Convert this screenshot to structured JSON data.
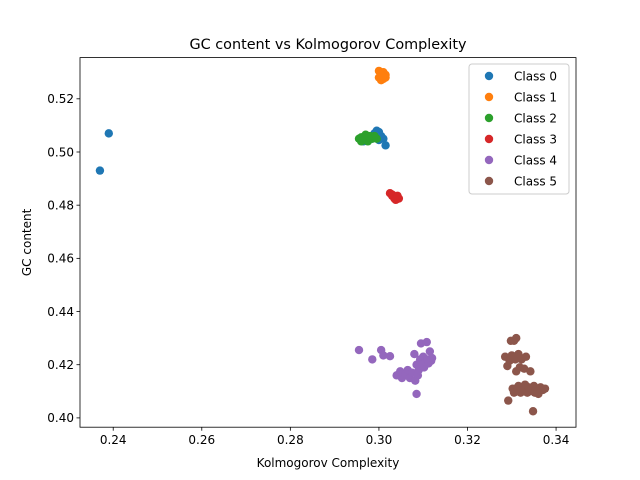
{
  "chart_data": {
    "type": "scatter",
    "title": "GC content vs Kolmogorov Complexity",
    "xlabel": "Kolmogorov Complexity",
    "ylabel": "GC content",
    "xlim": [
      0.2325,
      0.3445
    ],
    "ylim": [
      0.3965,
      0.5355
    ],
    "xticks": [
      "0.24",
      "0.26",
      "0.28",
      "0.30",
      "0.32",
      "0.34"
    ],
    "yticks": [
      "0.40",
      "0.42",
      "0.44",
      "0.46",
      "0.48",
      "0.50",
      "0.52"
    ],
    "grid": false,
    "legend_position": "top-right",
    "series": [
      {
        "name": "Class 0",
        "color": "#1f77b4",
        "points": [
          [
            0.237,
            0.493
          ],
          [
            0.239,
            0.507
          ],
          [
            0.2965,
            0.504
          ],
          [
            0.2975,
            0.506
          ],
          [
            0.2985,
            0.505
          ],
          [
            0.299,
            0.507
          ],
          [
            0.2995,
            0.508
          ],
          [
            0.3,
            0.5075
          ],
          [
            0.3005,
            0.506
          ],
          [
            0.3,
            0.5045
          ],
          [
            0.301,
            0.505
          ],
          [
            0.3015,
            0.5025
          ]
        ]
      },
      {
        "name": "Class 1",
        "color": "#ff7f0e",
        "points": [
          [
            0.3,
            0.5305
          ],
          [
            0.3005,
            0.5295
          ],
          [
            0.301,
            0.53
          ],
          [
            0.3015,
            0.529
          ],
          [
            0.3,
            0.528
          ],
          [
            0.301,
            0.5275
          ],
          [
            0.3005,
            0.527
          ],
          [
            0.3015,
            0.528
          ],
          [
            0.3008,
            0.5285
          ]
        ]
      },
      {
        "name": "Class 2",
        "color": "#2ca02c",
        "points": [
          [
            0.2955,
            0.505
          ],
          [
            0.296,
            0.5055
          ],
          [
            0.2965,
            0.5045
          ],
          [
            0.297,
            0.505
          ],
          [
            0.2975,
            0.504
          ],
          [
            0.297,
            0.5065
          ],
          [
            0.298,
            0.506
          ],
          [
            0.2985,
            0.505
          ],
          [
            0.299,
            0.506
          ],
          [
            0.296,
            0.504
          ],
          [
            0.2975,
            0.5055
          ],
          [
            0.2995,
            0.505
          ],
          [
            0.2968,
            0.506
          ]
        ]
      },
      {
        "name": "Class 3",
        "color": "#d62728",
        "points": [
          [
            0.3025,
            0.4845
          ],
          [
            0.303,
            0.4835
          ],
          [
            0.3035,
            0.4825
          ],
          [
            0.304,
            0.483
          ],
          [
            0.3045,
            0.4825
          ],
          [
            0.303,
            0.484
          ],
          [
            0.3038,
            0.482
          ],
          [
            0.3042,
            0.4835
          ]
        ]
      },
      {
        "name": "Class 4",
        "color": "#9467bd",
        "points": [
          [
            0.2955,
            0.4255
          ],
          [
            0.2985,
            0.422
          ],
          [
            0.3005,
            0.4255
          ],
          [
            0.301,
            0.4235
          ],
          [
            0.3025,
            0.4232
          ],
          [
            0.304,
            0.416
          ],
          [
            0.3048,
            0.4175
          ],
          [
            0.3052,
            0.415
          ],
          [
            0.306,
            0.4165
          ],
          [
            0.3065,
            0.418
          ],
          [
            0.307,
            0.415
          ],
          [
            0.3075,
            0.417
          ],
          [
            0.308,
            0.424
          ],
          [
            0.3082,
            0.414
          ],
          [
            0.3085,
            0.42
          ],
          [
            0.3085,
            0.409
          ],
          [
            0.3088,
            0.416
          ],
          [
            0.309,
            0.418
          ],
          [
            0.3093,
            0.422
          ],
          [
            0.3095,
            0.428
          ],
          [
            0.3098,
            0.42
          ],
          [
            0.31,
            0.423
          ],
          [
            0.3102,
            0.419
          ],
          [
            0.3105,
            0.421
          ],
          [
            0.3108,
            0.4285
          ],
          [
            0.311,
            0.422
          ],
          [
            0.3112,
            0.4205
          ],
          [
            0.3115,
            0.425
          ],
          [
            0.3118,
            0.4215
          ],
          [
            0.312,
            0.4225
          ]
        ]
      },
      {
        "name": "Class 5",
        "color": "#8c564b",
        "points": [
          [
            0.3285,
            0.423
          ],
          [
            0.329,
            0.4195
          ],
          [
            0.3292,
            0.4065
          ],
          [
            0.3295,
            0.4215
          ],
          [
            0.3298,
            0.429
          ],
          [
            0.33,
            0.4235
          ],
          [
            0.3302,
            0.411
          ],
          [
            0.3305,
            0.429
          ],
          [
            0.3305,
            0.4095
          ],
          [
            0.3308,
            0.422
          ],
          [
            0.331,
            0.43
          ],
          [
            0.331,
            0.4175
          ],
          [
            0.3312,
            0.41
          ],
          [
            0.3315,
            0.424
          ],
          [
            0.3315,
            0.412
          ],
          [
            0.3318,
            0.419
          ],
          [
            0.332,
            0.4095
          ],
          [
            0.3322,
            0.422
          ],
          [
            0.3325,
            0.4105
          ],
          [
            0.3328,
            0.4185
          ],
          [
            0.333,
            0.4125
          ],
          [
            0.3332,
            0.423
          ],
          [
            0.3335,
            0.4095
          ],
          [
            0.3338,
            0.4115
          ],
          [
            0.334,
            0.41
          ],
          [
            0.3342,
            0.4175
          ],
          [
            0.3345,
            0.411
          ],
          [
            0.3348,
            0.4025
          ],
          [
            0.335,
            0.412
          ],
          [
            0.3352,
            0.4095
          ],
          [
            0.3355,
            0.411
          ],
          [
            0.3358,
            0.41
          ],
          [
            0.336,
            0.409
          ],
          [
            0.3365,
            0.4115
          ],
          [
            0.337,
            0.4105
          ],
          [
            0.3375,
            0.411
          ]
        ]
      }
    ]
  }
}
